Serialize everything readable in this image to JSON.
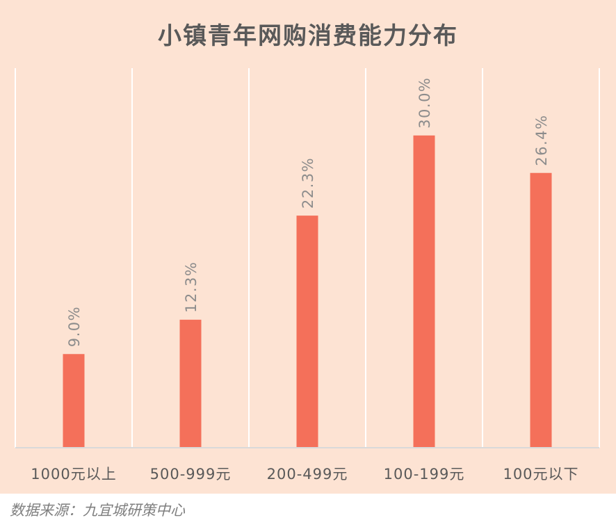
{
  "title": "小镇青年网购消费能力分布",
  "source": "数据来源：九宜城研策中心",
  "chart_data": {
    "type": "bar",
    "title": "小镇青年网购消费能力分布",
    "xlabel": "",
    "ylabel": "",
    "categories": [
      "1000元以上",
      "500-999元",
      "200-499元",
      "100-199元",
      "100元以下"
    ],
    "series": [
      {
        "values": [
          9.0,
          12.3,
          22.3,
          30.0,
          26.4
        ]
      }
    ],
    "data_labels": [
      "9.0%",
      "12.3%",
      "22.3%",
      "30.0%",
      "26.4%"
    ],
    "ylim": [
      0,
      36
    ],
    "grid": "vertical category separators",
    "legend": "none",
    "colors": {
      "bar": "#f4705a",
      "background": "#fde3d3",
      "label": "#8c8c8c",
      "axis": "#d9d9d9",
      "grid": "#ffffff"
    }
  }
}
